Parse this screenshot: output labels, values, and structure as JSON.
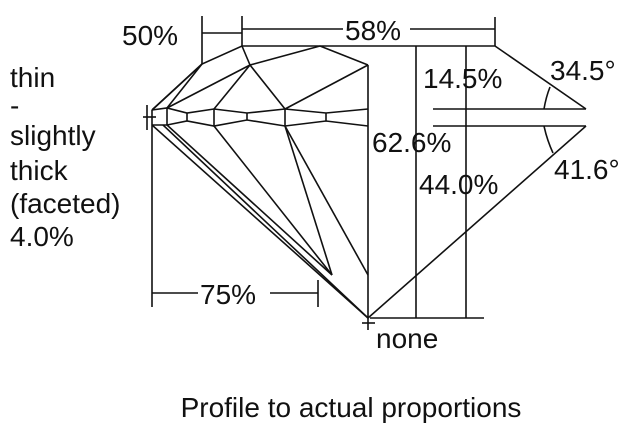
{
  "girdle_label": [
    "thin",
    "-",
    "slightly",
    "thick",
    "(faceted)",
    "4.0%"
  ],
  "dimensions": {
    "star_length": "50%",
    "table": "58%",
    "lower_half": "75%",
    "crown_height": "14.5%",
    "crown_angle": "34.5°",
    "total_depth": "62.6%",
    "pavilion_depth": "44.0%",
    "pavilion_angle": "41.6°",
    "culet": "none"
  },
  "caption": "Profile to actual proportions"
}
